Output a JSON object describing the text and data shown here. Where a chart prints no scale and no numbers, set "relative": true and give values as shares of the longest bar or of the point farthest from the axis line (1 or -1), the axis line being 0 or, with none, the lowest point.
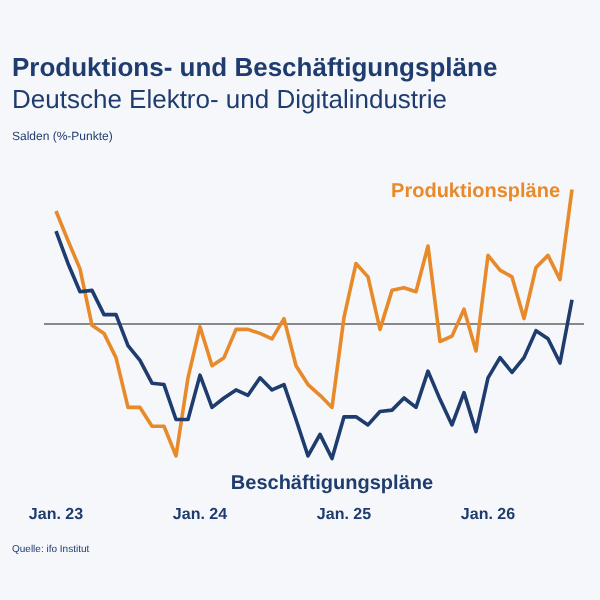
{
  "chart_data": {
    "type": "line",
    "title": "Produktions- und Beschäftigungspläne",
    "subtitle": "Deutsche Elektro- und Digitalindustrie",
    "ylabel": "Salden (%-Punkte)",
    "annotations": [
      "Quelle: ifo Institut"
    ],
    "relative": true,
    "legend": false,
    "grid": false,
    "marker": "none",
    "x": [
      "2023-01",
      "2023-02",
      "2023-03",
      "2023-04",
      "2023-05",
      "2023-06",
      "2023-07",
      "2023-08",
      "2023-09",
      "2023-10",
      "2023-11",
      "2023-12",
      "2024-01",
      "2024-02",
      "2024-03",
      "2024-04",
      "2024-05",
      "2024-06",
      "2024-07",
      "2024-08",
      "2024-09",
      "2024-10",
      "2024-11",
      "2024-12",
      "2025-01",
      "2025-02",
      "2025-03",
      "2025-04",
      "2025-05",
      "2025-06",
      "2025-07",
      "2025-08",
      "2025-09",
      "2025-10",
      "2025-11",
      "2025-12",
      "2026-01",
      "2026-02",
      "2026-03",
      "2026-04",
      "2026-05",
      "2026-06",
      "2026-07",
      "2026-08"
    ],
    "xlim": [
      "2022-12",
      "2026-09"
    ],
    "xticks": [
      {
        "value": "2023-01",
        "label": "Jan. 23"
      },
      {
        "value": "2024-01",
        "label": "Jan. 24"
      },
      {
        "value": "2025-01",
        "label": "Jan. 25"
      },
      {
        "value": "2026-01",
        "label": "Jan. 26"
      }
    ],
    "series": [
      {
        "name": "Produktionspläne",
        "color": "#e8892a",
        "values": [
          0.84,
          0.62,
          0.41,
          -0.01,
          -0.07,
          -0.25,
          -0.62,
          -0.62,
          -0.76,
          -0.76,
          -0.98,
          -0.4,
          -0.02,
          -0.31,
          -0.25,
          -0.04,
          -0.04,
          -0.07,
          -0.11,
          0.04,
          -0.31,
          -0.45,
          -0.53,
          -0.62,
          0.05,
          0.45,
          0.35,
          -0.04,
          0.25,
          0.27,
          0.24,
          0.58,
          -0.13,
          -0.09,
          0.11,
          -0.2,
          0.51,
          0.4,
          0.35,
          0.04,
          0.42,
          0.51,
          0.33,
          1
        ]
      },
      {
        "name": "Beschäftigungspläne",
        "color": "#1f3c6e",
        "values": [
          0.69,
          0.45,
          0.24,
          0.25,
          0.07,
          0.07,
          -0.16,
          -0.27,
          -0.44,
          -0.45,
          -0.71,
          -0.71,
          -0.38,
          -0.62,
          -0.55,
          -0.49,
          -0.53,
          -0.4,
          -0.49,
          -0.45,
          -0.71,
          -0.98,
          -0.82,
          -1,
          -0.69,
          -0.69,
          -0.75,
          -0.65,
          -0.64,
          -0.55,
          -0.62,
          -0.35,
          -0.56,
          -0.75,
          -0.51,
          -0.8,
          -0.4,
          -0.25,
          -0.36,
          -0.25,
          -0.05,
          -0.11,
          -0.29,
          0.18
        ]
      }
    ]
  }
}
